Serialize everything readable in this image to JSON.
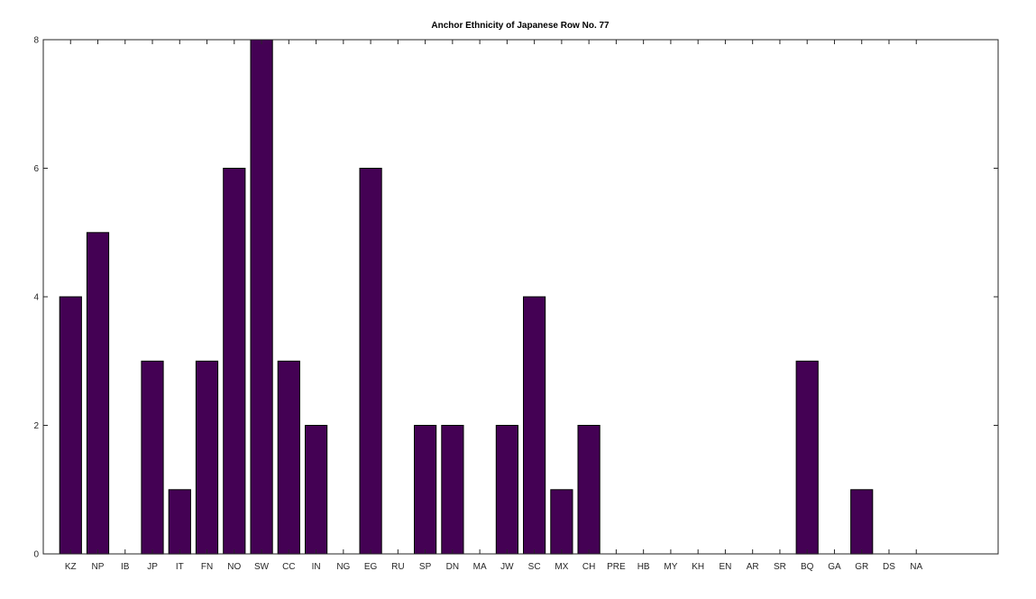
{
  "chart_data": {
    "type": "bar",
    "title": "Anchor Ethnicity of Japanese Row No. 77",
    "xlabel": "",
    "ylabel": "",
    "categories": [
      "KZ",
      "NP",
      "IB",
      "JP",
      "IT",
      "FN",
      "NO",
      "SW",
      "CC",
      "IN",
      "NG",
      "EG",
      "RU",
      "SP",
      "DN",
      "MA",
      "JW",
      "SC",
      "MX",
      "CH",
      "PRE",
      "HB",
      "MY",
      "KH",
      "EN",
      "AR",
      "SR",
      "BQ",
      "GA",
      "GR",
      "DS",
      "NA"
    ],
    "values": [
      4,
      5,
      0,
      3,
      1,
      3,
      6,
      8,
      3,
      2,
      0,
      6,
      0,
      2,
      2,
      0,
      2,
      4,
      1,
      2,
      0,
      0,
      0,
      0,
      0,
      0,
      0,
      3,
      0,
      1,
      0,
      0
    ],
    "ylim": [
      0,
      8
    ],
    "yticks": [
      0,
      2,
      4,
      6,
      8
    ],
    "xlim": [
      0,
      35
    ],
    "grid": false,
    "legend": "none",
    "bar_color": "#440154"
  }
}
